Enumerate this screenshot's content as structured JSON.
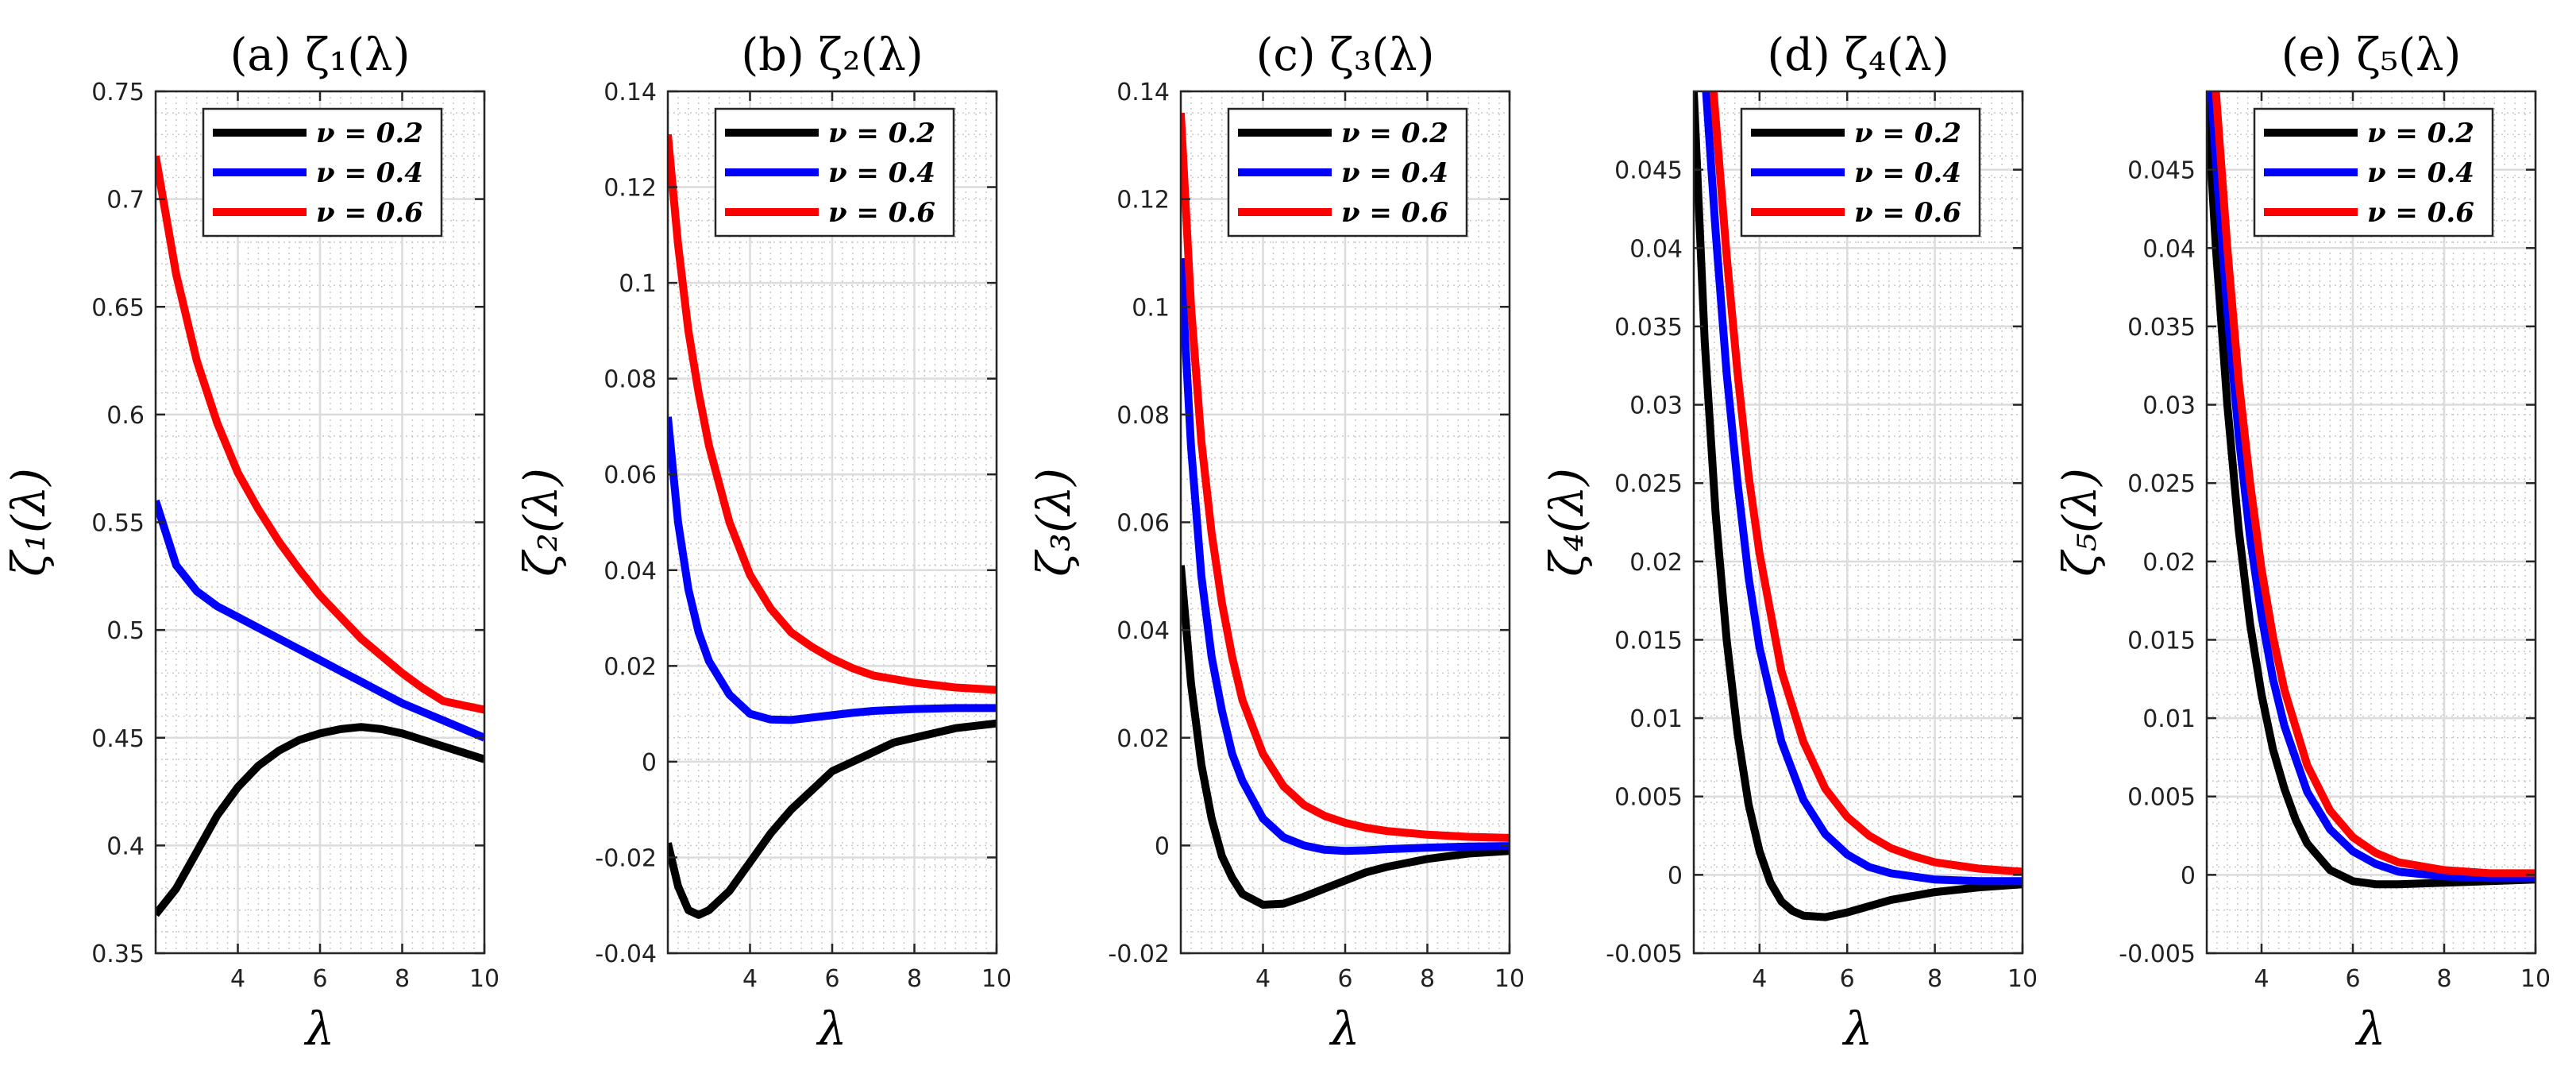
{
  "figure": {
    "chart_data": [
      {
        "type": "line",
        "title": "(a) ζ₁(λ)",
        "xlabel": "λ",
        "ylabel": "ζ₁(λ)",
        "xlim": [
          2,
          10
        ],
        "ylim": [
          0.35,
          0.75
        ],
        "xticks": [
          4,
          6,
          8,
          10
        ],
        "xtick_labels": [
          "4",
          "6",
          "8",
          "10"
        ],
        "yticks": [
          0.35,
          0.4,
          0.45,
          0.5,
          0.55,
          0.6,
          0.65,
          0.7,
          0.75
        ],
        "ytick_labels": [
          "0.35",
          "0.4",
          "0.45",
          "0.5",
          "0.55",
          "0.6",
          "0.65",
          "0.7",
          "0.75"
        ],
        "grid": true,
        "legend_position": "top-right",
        "series": [
          {
            "name": "ν = 0.2",
            "color": "#000000",
            "x": [
              2,
              2.5,
              3,
              3.5,
              4,
              4.5,
              5,
              5.5,
              6,
              6.5,
              7,
              7.5,
              8,
              8.5,
              9,
              9.5,
              10
            ],
            "values": [
              0.368,
              0.38,
              0.397,
              0.414,
              0.427,
              0.437,
              0.444,
              0.449,
              0.452,
              0.454,
              0.455,
              0.454,
              0.452,
              0.449,
              0.446,
              0.443,
              0.44
            ]
          },
          {
            "name": "ν = 0.4",
            "color": "#0000ff",
            "x": [
              2,
              2.5,
              3,
              3.5,
              4,
              4.5,
              5,
              5.5,
              6,
              6.5,
              7,
              7.5,
              8,
              8.5,
              9,
              9.5,
              10
            ],
            "values": [
              0.56,
              0.53,
              0.518,
              0.511,
              0.506,
              0.501,
              0.496,
              0.491,
              0.486,
              0.481,
              0.476,
              0.471,
              0.466,
              0.462,
              0.458,
              0.454,
              0.45
            ]
          },
          {
            "name": "ν = 0.6",
            "color": "#ff0000",
            "x": [
              2,
              2.5,
              3,
              3.5,
              4,
              4.5,
              5,
              5.5,
              6,
              6.5,
              7,
              7.5,
              8,
              8.5,
              9,
              9.5,
              10
            ],
            "values": [
              0.72,
              0.665,
              0.625,
              0.596,
              0.573,
              0.556,
              0.541,
              0.528,
              0.516,
              0.506,
              0.496,
              0.488,
              0.48,
              0.473,
              0.467,
              0.465,
              0.463
            ]
          }
        ]
      },
      {
        "type": "line",
        "title": "(b) ζ₂(λ)",
        "xlabel": "λ",
        "ylabel": "ζ₂(λ)",
        "xlim": [
          2,
          10
        ],
        "ylim": [
          -0.04,
          0.14
        ],
        "xticks": [
          4,
          6,
          8,
          10
        ],
        "xtick_labels": [
          "4",
          "6",
          "8",
          "10"
        ],
        "yticks": [
          -0.04,
          -0.02,
          0,
          0.02,
          0.04,
          0.06,
          0.08,
          0.1,
          0.12,
          0.14
        ],
        "ytick_labels": [
          "-0.04",
          "-0.02",
          "0",
          "0.02",
          "0.04",
          "0.06",
          "0.08",
          "0.1",
          "0.12",
          "0.14"
        ],
        "grid": true,
        "legend_position": "top-right",
        "series": [
          {
            "name": "ν = 0.2",
            "color": "#000000",
            "x": [
              2,
              2.25,
              2.5,
              2.75,
              3,
              3.5,
              4,
              4.5,
              5,
              5.5,
              6,
              6.5,
              7,
              7.5,
              8,
              8.5,
              9,
              9.5,
              10
            ],
            "values": [
              -0.017,
              -0.026,
              -0.031,
              -0.032,
              -0.031,
              -0.027,
              -0.021,
              -0.015,
              -0.01,
              -0.006,
              -0.002,
              0.0,
              0.002,
              0.004,
              0.005,
              0.006,
              0.007,
              0.0075,
              0.008
            ]
          },
          {
            "name": "ν = 0.4",
            "color": "#0000ff",
            "x": [
              2,
              2.25,
              2.5,
              2.75,
              3,
              3.5,
              4,
              4.5,
              5,
              5.5,
              6,
              6.5,
              7,
              7.5,
              8,
              9,
              10
            ],
            "values": [
              0.072,
              0.05,
              0.036,
              0.027,
              0.021,
              0.014,
              0.01,
              0.0088,
              0.0087,
              0.0092,
              0.0097,
              0.0102,
              0.0106,
              0.0108,
              0.011,
              0.0112,
              0.0112
            ]
          },
          {
            "name": "ν = 0.6",
            "color": "#ff0000",
            "x": [
              2,
              2.25,
              2.5,
              2.75,
              3,
              3.5,
              4,
              4.5,
              5,
              5.5,
              6,
              6.5,
              7,
              8,
              9,
              10
            ],
            "values": [
              0.131,
              0.108,
              0.09,
              0.077,
              0.066,
              0.05,
              0.039,
              0.032,
              0.027,
              0.024,
              0.0215,
              0.0195,
              0.018,
              0.0165,
              0.0155,
              0.015
            ]
          }
        ]
      },
      {
        "type": "line",
        "title": "(c) ζ₃(λ)",
        "xlabel": "λ",
        "ylabel": "ζ₃(λ)",
        "xlim": [
          2,
          10
        ],
        "ylim": [
          -0.02,
          0.14
        ],
        "xticks": [
          4,
          6,
          8,
          10
        ],
        "xtick_labels": [
          "4",
          "6",
          "8",
          "10"
        ],
        "yticks": [
          -0.02,
          0,
          0.02,
          0.04,
          0.06,
          0.08,
          0.1,
          0.12,
          0.14
        ],
        "ytick_labels": [
          "-0.02",
          "0",
          "0.02",
          "0.04",
          "0.06",
          "0.08",
          "0.1",
          "0.12",
          "0.14"
        ],
        "grid": true,
        "legend_position": "top-right",
        "series": [
          {
            "name": "ν = 0.2",
            "color": "#000000",
            "x": [
              2,
              2.25,
              2.5,
              2.75,
              3,
              3.25,
              3.5,
              4,
              4.5,
              5,
              5.5,
              6,
              6.5,
              7,
              8,
              9,
              10
            ],
            "values": [
              0.052,
              0.03,
              0.015,
              0.005,
              -0.002,
              -0.006,
              -0.009,
              -0.011,
              -0.0108,
              -0.0095,
              -0.008,
              -0.0065,
              -0.005,
              -0.004,
              -0.0025,
              -0.0015,
              -0.001
            ]
          },
          {
            "name": "ν = 0.4",
            "color": "#0000ff",
            "x": [
              2,
              2.25,
              2.5,
              2.75,
              3,
              3.25,
              3.5,
              4,
              4.5,
              5,
              5.5,
              6,
              6.5,
              7,
              8,
              9,
              10
            ],
            "values": [
              0.109,
              0.074,
              0.05,
              0.035,
              0.025,
              0.017,
              0.012,
              0.005,
              0.0015,
              0.0,
              -0.0008,
              -0.001,
              -0.0009,
              -0.0007,
              -0.0004,
              -0.0002,
              -0.0001
            ]
          },
          {
            "name": "ν = 0.6",
            "color": "#ff0000",
            "x": [
              2,
              2.25,
              2.5,
              2.75,
              3,
              3.25,
              3.5,
              4,
              4.5,
              5,
              5.5,
              6,
              6.5,
              7,
              8,
              9,
              10
            ],
            "values": [
              0.136,
              0.1,
              0.075,
              0.058,
              0.045,
              0.035,
              0.027,
              0.017,
              0.011,
              0.0075,
              0.0055,
              0.0042,
              0.0033,
              0.0027,
              0.002,
              0.0016,
              0.0014
            ]
          }
        ]
      },
      {
        "type": "line",
        "title": "(d) ζ₄(λ)",
        "xlabel": "λ",
        "ylabel": "ζ₄(λ)",
        "xlim": [
          2.5,
          10
        ],
        "ylim": [
          -0.005,
          0.05
        ],
        "xticks": [
          4,
          6,
          8,
          10
        ],
        "xtick_labels": [
          "4",
          "6",
          "8",
          "10"
        ],
        "yticks": [
          -0.005,
          0,
          0.005,
          0.01,
          0.015,
          0.02,
          0.025,
          0.03,
          0.035,
          0.04,
          0.045
        ],
        "ytick_labels": [
          "-0.005",
          "0",
          "0.005",
          "0.01",
          "0.015",
          "0.02",
          "0.025",
          "0.03",
          "0.035",
          "0.04",
          "0.045"
        ],
        "grid": true,
        "legend_position": "top-right",
        "series": [
          {
            "name": "ν = 0.2",
            "color": "#000000",
            "x": [
              2.5,
              2.75,
              3,
              3.25,
              3.5,
              3.75,
              4,
              4.25,
              4.5,
              4.75,
              5,
              5.5,
              6,
              6.5,
              7,
              8,
              9,
              10
            ],
            "values": [
              0.05,
              0.034,
              0.023,
              0.015,
              0.009,
              0.0045,
              0.0015,
              -0.0005,
              -0.0017,
              -0.0023,
              -0.0026,
              -0.0027,
              -0.0024,
              -0.002,
              -0.0016,
              -0.0011,
              -0.0008,
              -0.0006
            ]
          },
          {
            "name": "ν = 0.4",
            "color": "#0000ff",
            "x": [
              2.78,
              3,
              3.25,
              3.5,
              3.75,
              4,
              4.5,
              5,
              5.5,
              6,
              6.5,
              7,
              8,
              9,
              10
            ],
            "values": [
              0.05,
              0.041,
              0.032,
              0.025,
              0.019,
              0.0145,
              0.0085,
              0.0048,
              0.0026,
              0.0013,
              0.0005,
              0.0001,
              -0.0003,
              -0.0004,
              -0.0004
            ]
          },
          {
            "name": "ν = 0.6",
            "color": "#ff0000",
            "x": [
              2.95,
              3.25,
              3.5,
              3.75,
              4,
              4.5,
              5,
              5.5,
              6,
              6.5,
              7,
              7.5,
              8,
              9,
              10
            ],
            "values": [
              0.05,
              0.0395,
              0.032,
              0.0255,
              0.0205,
              0.013,
              0.0085,
              0.0055,
              0.0037,
              0.0025,
              0.0017,
              0.0012,
              0.0008,
              0.0004,
              0.0002
            ]
          }
        ]
      },
      {
        "type": "line",
        "title": "(e) ζ₅(λ)",
        "xlabel": "λ",
        "ylabel": "ζ₅(λ)",
        "xlim": [
          2.8,
          10
        ],
        "ylim": [
          -0.005,
          0.05
        ],
        "xticks": [
          4,
          6,
          8,
          10
        ],
        "xtick_labels": [
          "4",
          "6",
          "8",
          "10"
        ],
        "yticks": [
          -0.005,
          0,
          0.005,
          0.01,
          0.015,
          0.02,
          0.025,
          0.03,
          0.035,
          0.04,
          0.045
        ],
        "ytick_labels": [
          "-0.005",
          "0",
          "0.005",
          "0.01",
          "0.015",
          "0.02",
          "0.025",
          "0.03",
          "0.035",
          "0.04",
          "0.045"
        ],
        "grid": true,
        "legend_position": "top-right",
        "series": [
          {
            "name": "ν = 0.2",
            "color": "#000000",
            "x": [
              2.8,
              3,
              3.25,
              3.5,
              3.75,
              4,
              4.25,
              4.5,
              4.75,
              5,
              5.5,
              6,
              6.5,
              7,
              8,
              9,
              10
            ],
            "values": [
              0.05,
              0.04,
              0.03,
              0.022,
              0.016,
              0.0115,
              0.008,
              0.0055,
              0.0035,
              0.002,
              0.0003,
              -0.0004,
              -0.0006,
              -0.0006,
              -0.0005,
              -0.0004,
              -0.0003
            ]
          },
          {
            "name": "ν = 0.4",
            "color": "#0000ff",
            "x": [
              2.9,
              3,
              3.25,
              3.5,
              3.75,
              4,
              4.25,
              4.5,
              5,
              5.5,
              6,
              6.5,
              7,
              8,
              9,
              10
            ],
            "values": [
              0.05,
              0.0455,
              0.036,
              0.028,
              0.0215,
              0.0165,
              0.0125,
              0.0095,
              0.0053,
              0.0029,
              0.0015,
              0.0007,
              0.0002,
              -0.0001,
              -0.0002,
              -0.0002
            ]
          },
          {
            "name": "ν = 0.6",
            "color": "#ff0000",
            "x": [
              3,
              3.25,
              3.5,
              3.75,
              4,
              4.25,
              4.5,
              5,
              5.5,
              6,
              6.5,
              7,
              8,
              9,
              10
            ],
            "values": [
              0.05,
              0.04,
              0.0315,
              0.025,
              0.0195,
              0.0152,
              0.0118,
              0.007,
              0.0041,
              0.0024,
              0.0014,
              0.0008,
              0.0003,
              0.0001,
              0.0001
            ]
          }
        ]
      }
    ]
  }
}
